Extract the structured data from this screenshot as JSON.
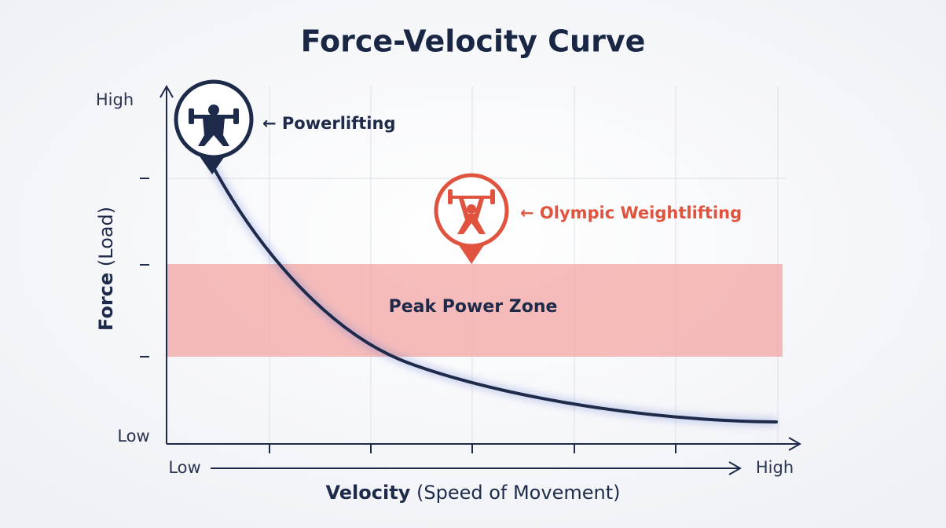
{
  "title": "Force-Velocity Curve",
  "y_axis": {
    "label": "Force",
    "note": "(Load)",
    "high": "High",
    "low": "Low"
  },
  "x_axis": {
    "label": "Velocity",
    "note": "(Speed of Movement)",
    "low": "Low",
    "high": "High"
  },
  "zone": {
    "label": "Peak Power Zone"
  },
  "annotations": [
    {
      "label": "← Powerlifting"
    },
    {
      "label": "← Olympic Weightlifting"
    }
  ]
}
